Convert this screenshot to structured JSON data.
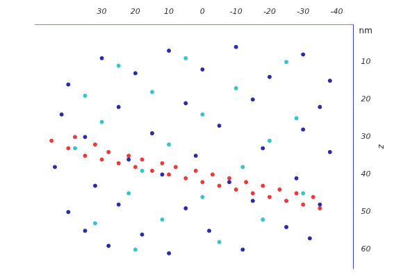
{
  "chart_data": {
    "type": "scatter",
    "x_label_side": null,
    "annotations": [
      "nm"
    ],
    "y_label": "z",
    "xlim": [
      -45,
      50
    ],
    "xticks": [
      -40,
      -30,
      -20,
      -10,
      0,
      10,
      20,
      30
    ],
    "ylim": [
      0,
      65
    ],
    "yticks": [
      10,
      20,
      30,
      40,
      50,
      60
    ],
    "grid": false,
    "series": [
      {
        "color": "#2b2ba6",
        "marker": "circle",
        "x": [
          -30,
          -10,
          10,
          30,
          -38,
          -20,
          0,
          20,
          40,
          -35,
          -15,
          5,
          25,
          42,
          -30,
          -5,
          15,
          35,
          -38,
          -18,
          2,
          22,
          44,
          -28,
          -8,
          12,
          32,
          -35,
          -15,
          5,
          25,
          40,
          -25,
          -2,
          18,
          35,
          -12,
          10,
          28,
          -32
        ],
        "values": [
          8,
          6,
          7,
          9,
          15,
          14,
          12,
          13,
          16,
          22,
          20,
          21,
          22,
          24,
          28,
          27,
          29,
          30,
          34,
          33,
          35,
          36,
          38,
          41,
          42,
          40,
          43,
          48,
          47,
          49,
          48,
          50,
          54,
          55,
          56,
          55,
          60,
          61,
          59,
          57
        ]
      },
      {
        "color": "#35c4c8",
        "marker": "circle",
        "x": [
          -25,
          5,
          25,
          -10,
          15,
          35,
          -28,
          0,
          30,
          -20,
          10,
          38,
          -12,
          18,
          -30,
          0,
          22,
          -18,
          12,
          32,
          -5,
          20
        ],
        "values": [
          10,
          9,
          11,
          17,
          18,
          19,
          25,
          24,
          26,
          31,
          32,
          33,
          38,
          39,
          45,
          46,
          45,
          52,
          52,
          53,
          58,
          60
        ]
      },
      {
        "color": "#e83a3a",
        "marker": "circle",
        "x": [
          45,
          40,
          38,
          35,
          32,
          30,
          28,
          25,
          22,
          20,
          18,
          15,
          12,
          10,
          8,
          5,
          2,
          0,
          -3,
          -5,
          -8,
          -10,
          -13,
          -15,
          -18,
          -20,
          -23,
          -25,
          -28,
          -30,
          -33,
          -35
        ],
        "values": [
          31,
          33,
          30,
          35,
          32,
          36,
          34,
          37,
          35,
          38,
          36,
          39,
          37,
          40,
          38,
          41,
          39,
          42,
          40,
          43,
          41,
          44,
          42,
          45,
          43,
          46,
          44,
          47,
          45,
          48,
          46,
          49
        ]
      }
    ]
  }
}
